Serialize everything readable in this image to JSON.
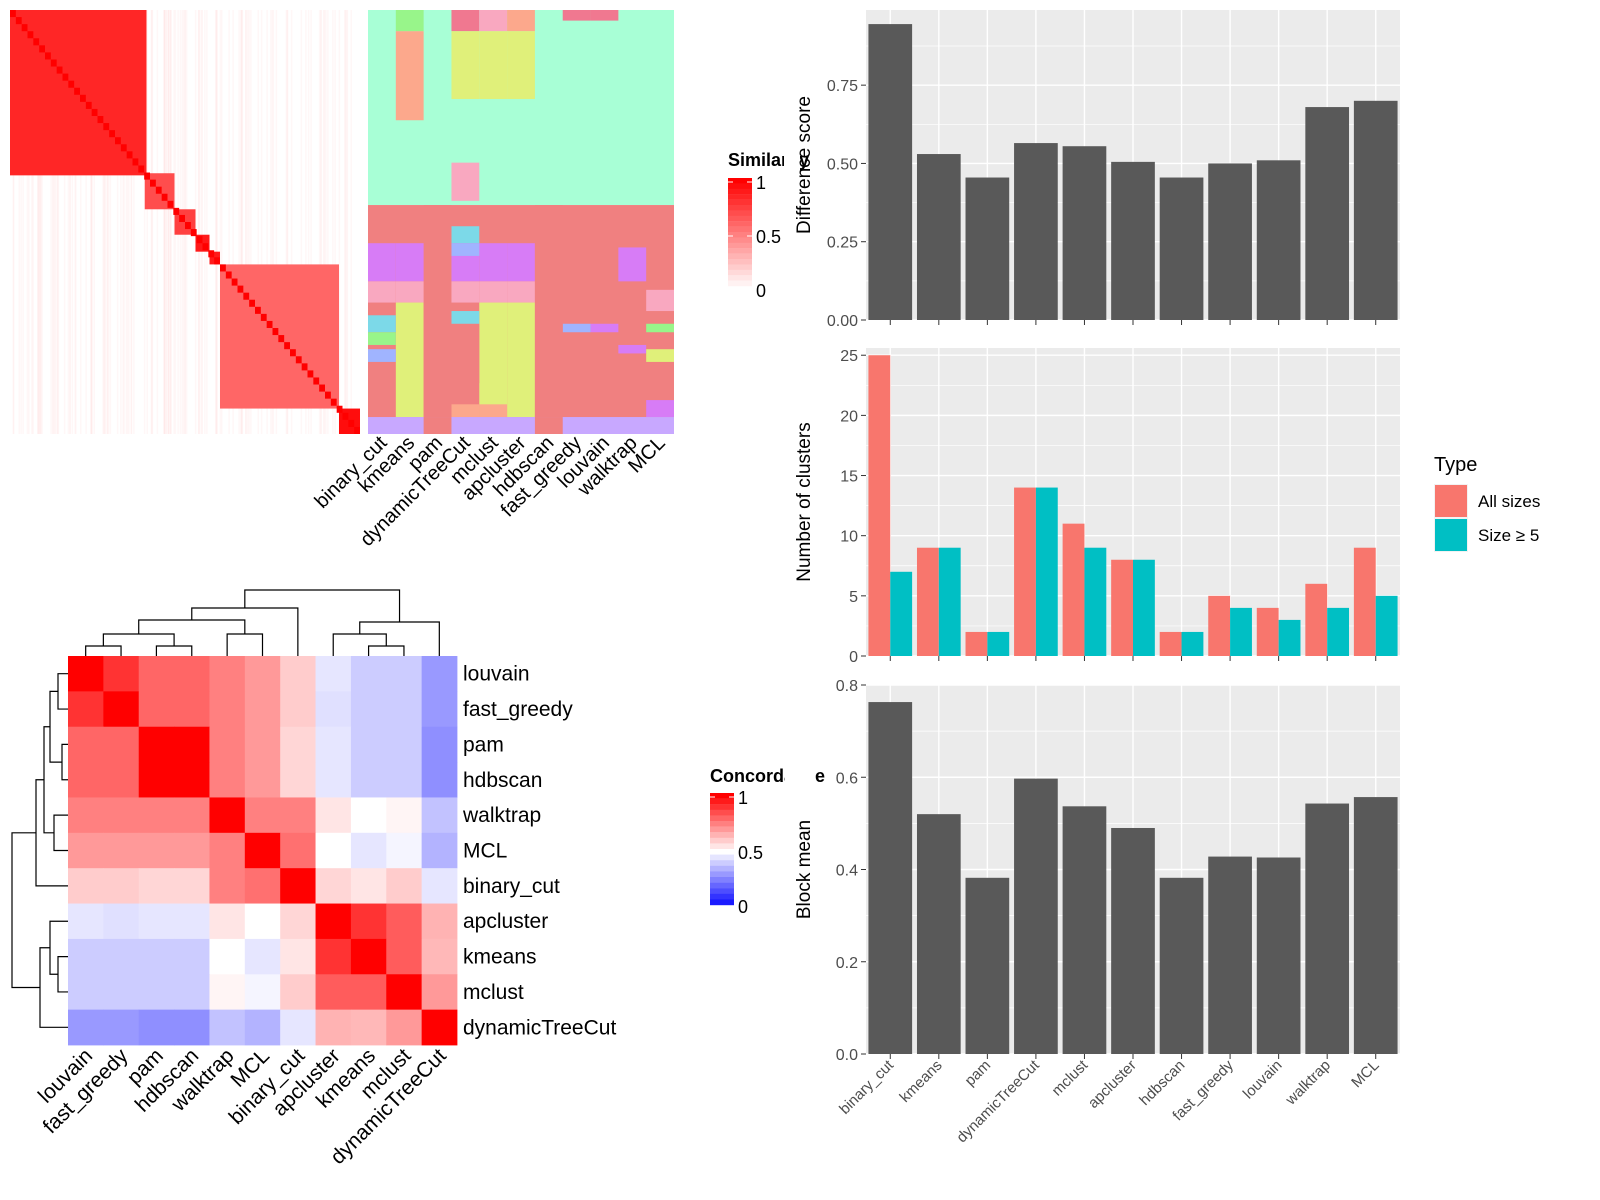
{
  "methods_order": [
    "binary_cut",
    "kmeans",
    "pam",
    "dynamicTreeCut",
    "mclust",
    "apcluster",
    "hdbscan",
    "fast_greedy",
    "louvain",
    "walktrap",
    "MCL"
  ],
  "chart_data": [
    {
      "type": "heatmap",
      "panel": "similarity-heatmap",
      "legend_title": "Similarity",
      "legend_ticks": [
        "1",
        "0.5",
        "0"
      ],
      "scale": {
        "min": 0,
        "mid": 0.5,
        "max": 1,
        "low_color": "#ffffff",
        "high_color": "#ff0000"
      },
      "blocks": [
        {
          "start": 0.0,
          "end": 0.39,
          "value": 0.85
        },
        {
          "start": 0.385,
          "end": 0.47,
          "value": 0.7
        },
        {
          "start": 0.47,
          "end": 0.53,
          "value": 0.75
        },
        {
          "start": 0.53,
          "end": 0.57,
          "value": 0.9
        },
        {
          "start": 0.57,
          "end": 0.6,
          "value": 0.9
        },
        {
          "start": 0.6,
          "end": 0.94,
          "value": 0.6
        },
        {
          "start": 0.94,
          "end": 1.0,
          "value": 0.95
        }
      ]
    },
    {
      "type": "heatmap",
      "panel": "cluster-membership",
      "columns": [
        "binary_cut",
        "kmeans",
        "pam",
        "dynamicTreeCut",
        "mclust",
        "apcluster",
        "hdbscan",
        "fast_greedy",
        "louvain",
        "walktrap",
        "MCL"
      ],
      "palette": {
        "teal": "#a8ffd6",
        "salmon": "#f08080",
        "purple": "#d77cf6",
        "lime": "#e0f07a",
        "pink": "#f9a8c0",
        "peach": "#fca88c",
        "green": "#98f58a",
        "cyan": "#7cd9e8",
        "blue": "#a0b4ff",
        "lavender": "#c8a8ff",
        "rose": "#f07890"
      },
      "top_fraction": 0.46,
      "top_color": "teal",
      "bottom_color": "salmon"
    },
    {
      "type": "heatmap",
      "panel": "concordance-heatmap",
      "legend_title": "Concordance",
      "legend_ticks": [
        "1",
        "0.5",
        "0"
      ],
      "scale": {
        "min": 0,
        "mid": 0.5,
        "max": 1,
        "low_color": "#0000ff",
        "mid_color": "#ffffff",
        "high_color": "#ff0000"
      },
      "rows": [
        "louvain",
        "fast_greedy",
        "pam",
        "hdbscan",
        "walktrap",
        "MCL",
        "binary_cut",
        "apcluster",
        "kmeans",
        "mclust",
        "dynamicTreeCut"
      ],
      "columns": [
        "louvain",
        "fast_greedy",
        "pam",
        "hdbscan",
        "walktrap",
        "MCL",
        "binary_cut",
        "apcluster",
        "kmeans",
        "mclust",
        "dynamicTreeCut"
      ],
      "values": [
        [
          1.0,
          0.9,
          0.8,
          0.8,
          0.75,
          0.7,
          0.6,
          0.45,
          0.4,
          0.4,
          0.3
        ],
        [
          0.9,
          1.0,
          0.8,
          0.8,
          0.75,
          0.7,
          0.6,
          0.44,
          0.4,
          0.4,
          0.3
        ],
        [
          0.8,
          0.8,
          1.0,
          1.0,
          0.75,
          0.7,
          0.58,
          0.45,
          0.4,
          0.4,
          0.28
        ],
        [
          0.8,
          0.8,
          1.0,
          1.0,
          0.75,
          0.7,
          0.58,
          0.45,
          0.4,
          0.4,
          0.28
        ],
        [
          0.75,
          0.75,
          0.75,
          0.75,
          1.0,
          0.75,
          0.75,
          0.55,
          0.5,
          0.52,
          0.38
        ],
        [
          0.7,
          0.7,
          0.7,
          0.7,
          0.75,
          1.0,
          0.78,
          0.5,
          0.45,
          0.48,
          0.35
        ],
        [
          0.6,
          0.6,
          0.58,
          0.58,
          0.75,
          0.78,
          1.0,
          0.58,
          0.55,
          0.6,
          0.45
        ],
        [
          0.45,
          0.44,
          0.45,
          0.45,
          0.55,
          0.5,
          0.58,
          1.0,
          0.9,
          0.82,
          0.65
        ],
        [
          0.4,
          0.4,
          0.4,
          0.4,
          0.5,
          0.45,
          0.55,
          0.9,
          1.0,
          0.82,
          0.64
        ],
        [
          0.4,
          0.4,
          0.4,
          0.4,
          0.52,
          0.48,
          0.6,
          0.82,
          0.82,
          1.0,
          0.7
        ],
        [
          0.3,
          0.3,
          0.28,
          0.28,
          0.38,
          0.35,
          0.45,
          0.65,
          0.64,
          0.7,
          1.0
        ]
      ]
    },
    {
      "type": "bar",
      "panel": "difference-score",
      "categories": [
        "binary_cut",
        "kmeans",
        "pam",
        "dynamicTreeCut",
        "mclust",
        "apcluster",
        "hdbscan",
        "fast_greedy",
        "louvain",
        "walktrap",
        "MCL"
      ],
      "values": [
        0.945,
        0.53,
        0.455,
        0.565,
        0.555,
        0.505,
        0.455,
        0.5,
        0.51,
        0.68,
        0.7
      ],
      "ylabel": "Difference score",
      "ylim": [
        0,
        0.99
      ],
      "yticks": [
        0,
        0.25,
        0.5,
        0.75
      ],
      "ytick_labels": [
        "0.00",
        "0.25",
        "0.50",
        "0.75"
      ],
      "grid": true
    },
    {
      "type": "bar",
      "panel": "number-of-clusters",
      "categories": [
        "binary_cut",
        "kmeans",
        "pam",
        "dynamicTreeCut",
        "mclust",
        "apcluster",
        "hdbscan",
        "fast_greedy",
        "louvain",
        "walktrap",
        "MCL"
      ],
      "series": [
        {
          "name": "All sizes",
          "color": "#f8766d",
          "values": [
            25,
            9,
            2,
            14,
            11,
            8,
            2,
            5,
            4,
            6,
            9
          ]
        },
        {
          "name": "Size ≥ 5",
          "color": "#00bfc4",
          "values": [
            7,
            9,
            2,
            14,
            9,
            8,
            2,
            4,
            3,
            4,
            5
          ]
        }
      ],
      "ylabel": "Number of clusters",
      "ylim": [
        0,
        25.6
      ],
      "yticks": [
        0,
        5,
        10,
        15,
        20,
        25
      ],
      "ytick_labels": [
        "0",
        "5",
        "10",
        "15",
        "20",
        "25"
      ],
      "legend_title": "Type",
      "legend_position": "right",
      "grid": true
    },
    {
      "type": "bar",
      "panel": "block-mean",
      "categories": [
        "binary_cut",
        "kmeans",
        "pam",
        "dynamicTreeCut",
        "mclust",
        "apcluster",
        "hdbscan",
        "fast_greedy",
        "louvain",
        "walktrap",
        "MCL"
      ],
      "values": [
        0.763,
        0.52,
        0.382,
        0.597,
        0.537,
        0.49,
        0.382,
        0.428,
        0.426,
        0.543,
        0.557
      ],
      "ylabel": "Block mean",
      "ylim": [
        0,
        0.8
      ],
      "yticks": [
        0,
        0.2,
        0.4,
        0.6,
        0.8
      ],
      "ytick_labels": [
        "0.0",
        "0.2",
        "0.4",
        "0.6",
        "0.8"
      ],
      "grid": true
    }
  ]
}
